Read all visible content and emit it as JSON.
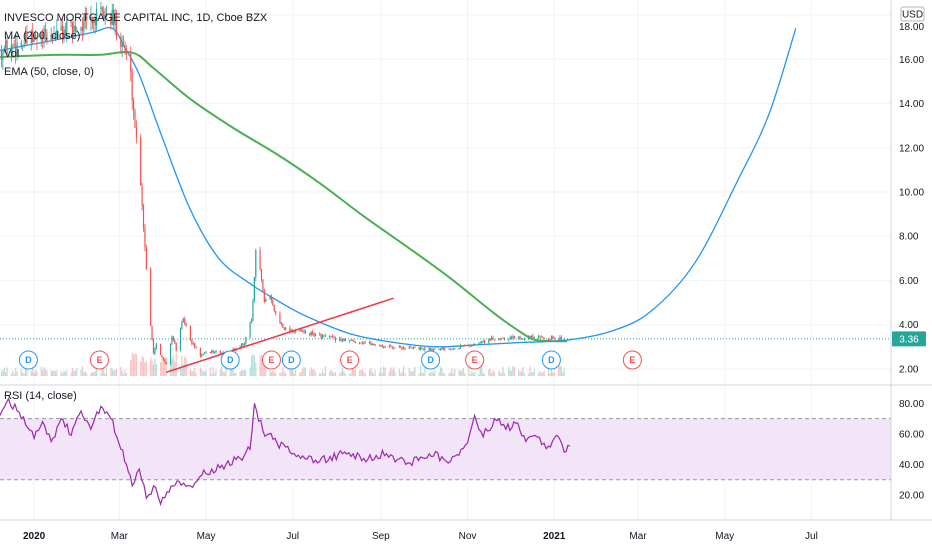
{
  "legend": {
    "title": "INVESCO MORTGAGE CAPITAL INC, 1D, Cboe BZX",
    "ma": "MA (200, close)",
    "vol": "Vol",
    "ema": "EMA (50, close, 0)",
    "rsi": "RSI (14, close)"
  },
  "currency": "USD",
  "last_price": "3.36",
  "colors": {
    "up": "#26a69a",
    "down": "#ef5350",
    "ma": "#4caf50",
    "ema": "#2196f3",
    "trend": "#f23645",
    "rsi": "#9c27b0",
    "rsi_band": "#f3e5f8",
    "dividend": "#2196f3",
    "earnings": "#ef5350",
    "price_tag": "#26a69a"
  },
  "chart_data": [
    {
      "type": "candlestick",
      "pane": "price",
      "ylim": [
        1.5,
        18.5
      ],
      "y_ticks": [
        "2.00",
        "4.00",
        "6.00",
        "8.00",
        "10.00",
        "12.00",
        "14.00",
        "16.00",
        "18.00"
      ],
      "y_tick_values": [
        2,
        4,
        6,
        8,
        10,
        12,
        14,
        16,
        18
      ],
      "x_ticks": [
        "2020",
        "Mar",
        "May",
        "Jul",
        "Sep",
        "Nov",
        "2021",
        "Mar",
        "May",
        "Jul"
      ],
      "x_tick_dates": [
        "2020-01-01",
        "2020-03-01",
        "2020-05-01",
        "2020-07-01",
        "2020-09-01",
        "2020-11-01",
        "2021-01-01",
        "2021-03-01",
        "2021-05-01",
        "2021-07-01"
      ],
      "x_range": [
        "2019-12-08",
        "2021-08-26"
      ],
      "last_price": 3.36,
      "close_path": [
        [
          "2019-12-08",
          16.4
        ],
        [
          "2019-12-20",
          16.7
        ],
        [
          "2020-01-05",
          16.9
        ],
        [
          "2020-01-20",
          17.2
        ],
        [
          "2020-02-05",
          17.6
        ],
        [
          "2020-02-20",
          18.0
        ],
        [
          "2020-02-25",
          17.8
        ],
        [
          "2020-03-02",
          17.0
        ],
        [
          "2020-03-05",
          16.4
        ],
        [
          "2020-03-09",
          15.2
        ],
        [
          "2020-03-12",
          13.0
        ],
        [
          "2020-03-16",
          10.5
        ],
        [
          "2020-03-19",
          7.5
        ],
        [
          "2020-03-23",
          4.0
        ],
        [
          "2020-03-25",
          2.7
        ],
        [
          "2020-03-27",
          3.2
        ],
        [
          "2020-03-31",
          2.5
        ],
        [
          "2020-04-03",
          2.2
        ],
        [
          "2020-04-07",
          3.5
        ],
        [
          "2020-04-10",
          2.9
        ],
        [
          "2020-04-15",
          4.3
        ],
        [
          "2020-04-20",
          3.3
        ],
        [
          "2020-04-27",
          2.6
        ],
        [
          "2020-05-05",
          2.8
        ],
        [
          "2020-05-15",
          2.7
        ],
        [
          "2020-05-22",
          2.9
        ],
        [
          "2020-05-28",
          3.2
        ],
        [
          "2020-06-02",
          4.2
        ],
        [
          "2020-06-05",
          7.2
        ],
        [
          "2020-06-08",
          6.5
        ],
        [
          "2020-06-11",
          5.0
        ],
        [
          "2020-06-15",
          5.2
        ],
        [
          "2020-06-20",
          4.3
        ],
        [
          "2020-06-26",
          3.8
        ],
        [
          "2020-07-05",
          3.7
        ],
        [
          "2020-07-20",
          3.5
        ],
        [
          "2020-08-05",
          3.3
        ],
        [
          "2020-08-20",
          3.2
        ],
        [
          "2020-09-05",
          3.0
        ],
        [
          "2020-09-20",
          2.95
        ],
        [
          "2020-10-05",
          2.9
        ],
        [
          "2020-10-20",
          2.95
        ],
        [
          "2020-11-05",
          3.1
        ],
        [
          "2020-11-15",
          3.3
        ],
        [
          "2020-11-25",
          3.4
        ],
        [
          "2020-12-10",
          3.45
        ],
        [
          "2020-12-25",
          3.4
        ],
        [
          "2021-01-10",
          3.36
        ]
      ],
      "ma_200": [
        [
          "2019-12-08",
          16.1
        ],
        [
          "2020-01-15",
          16.2
        ],
        [
          "2020-02-15",
          16.2
        ],
        [
          "2020-03-10",
          16.3
        ],
        [
          "2020-03-25",
          15.6
        ],
        [
          "2020-04-20",
          14.2
        ],
        [
          "2020-05-20",
          12.9
        ],
        [
          "2020-06-20",
          11.7
        ],
        [
          "2020-07-20",
          10.4
        ],
        [
          "2020-08-20",
          8.9
        ],
        [
          "2020-09-20",
          7.5
        ],
        [
          "2020-10-20",
          6.1
        ],
        [
          "2020-11-20",
          4.5
        ],
        [
          "2020-12-10",
          3.6
        ],
        [
          "2020-12-20",
          3.3
        ],
        [
          "2021-01-10",
          3.25
        ]
      ],
      "ema_50": [
        [
          "2019-12-08",
          16.4
        ],
        [
          "2020-01-10",
          16.8
        ],
        [
          "2020-02-10",
          17.2
        ],
        [
          "2020-02-25",
          17.4
        ],
        [
          "2020-03-05",
          16.5
        ],
        [
          "2020-03-15",
          15.3
        ],
        [
          "2020-03-31",
          12.5
        ],
        [
          "2020-04-20",
          9.2
        ],
        [
          "2020-05-10",
          7.0
        ],
        [
          "2020-05-31",
          5.9
        ],
        [
          "2020-06-20",
          5.1
        ],
        [
          "2020-07-10",
          4.4
        ],
        [
          "2020-08-10",
          3.6
        ],
        [
          "2020-09-10",
          3.2
        ],
        [
          "2020-10-10",
          3.0
        ],
        [
          "2020-11-10",
          3.1
        ],
        [
          "2020-12-10",
          3.2
        ],
        [
          "2021-01-10",
          3.3
        ],
        [
          "2021-02-10",
          3.7
        ],
        [
          "2021-03-10",
          4.6
        ],
        [
          "2021-04-10",
          6.8
        ],
        [
          "2021-05-10",
          10.5
        ],
        [
          "2021-06-01",
          13.5
        ],
        [
          "2021-06-20",
          17.4
        ]
      ],
      "trend_line": [
        [
          "2020-04-03",
          1.85
        ],
        [
          "2020-09-10",
          5.2
        ]
      ],
      "events": [
        {
          "type": "dividend",
          "label": "D",
          "date": "2019-12-28"
        },
        {
          "type": "earnings",
          "label": "E",
          "date": "2020-02-16"
        },
        {
          "type": "dividend",
          "label": "D",
          "date": "2020-05-18"
        },
        {
          "type": "earnings",
          "label": "E",
          "date": "2020-06-16"
        },
        {
          "type": "dividend",
          "label": "D",
          "date": "2020-06-30"
        },
        {
          "type": "earnings",
          "label": "E",
          "date": "2020-08-10"
        },
        {
          "type": "dividend",
          "label": "D",
          "date": "2020-10-06"
        },
        {
          "type": "earnings",
          "label": "E",
          "date": "2020-11-06"
        },
        {
          "type": "dividend",
          "label": "D",
          "date": "2020-12-30"
        },
        {
          "type": "earnings",
          "label": "E",
          "date": "2021-02-25"
        }
      ]
    },
    {
      "type": "line",
      "pane": "rsi",
      "name": "RSI (14, close)",
      "ylim": [
        5,
        90
      ],
      "y_ticks": [
        "20.00",
        "40.00",
        "60.00",
        "80.00"
      ],
      "y_tick_values": [
        20,
        40,
        60,
        80
      ],
      "bands": {
        "upper": 70,
        "lower": 30
      },
      "points": [
        [
          "2019-12-08",
          72
        ],
        [
          "2019-12-14",
          83
        ],
        [
          "2019-12-20",
          75
        ],
        [
          "2019-12-26",
          66
        ],
        [
          "2020-01-01",
          57
        ],
        [
          "2020-01-07",
          68
        ],
        [
          "2020-01-13",
          55
        ],
        [
          "2020-01-20",
          70
        ],
        [
          "2020-01-27",
          59
        ],
        [
          "2020-02-03",
          75
        ],
        [
          "2020-02-10",
          63
        ],
        [
          "2020-02-17",
          78
        ],
        [
          "2020-02-24",
          70
        ],
        [
          "2020-03-02",
          50
        ],
        [
          "2020-03-06",
          40
        ],
        [
          "2020-03-10",
          26
        ],
        [
          "2020-03-15",
          37
        ],
        [
          "2020-03-20",
          18
        ],
        [
          "2020-03-25",
          26
        ],
        [
          "2020-03-30",
          14
        ],
        [
          "2020-04-05",
          22
        ],
        [
          "2020-04-12",
          29
        ],
        [
          "2020-04-20",
          26
        ],
        [
          "2020-04-28",
          33
        ],
        [
          "2020-05-05",
          37
        ],
        [
          "2020-05-15",
          40
        ],
        [
          "2020-05-25",
          44
        ],
        [
          "2020-06-01",
          50
        ],
        [
          "2020-06-04",
          80
        ],
        [
          "2020-06-10",
          62
        ],
        [
          "2020-06-20",
          54
        ],
        [
          "2020-07-05",
          46
        ],
        [
          "2020-07-20",
          42
        ],
        [
          "2020-08-05",
          47
        ],
        [
          "2020-08-20",
          44
        ],
        [
          "2020-09-05",
          47
        ],
        [
          "2020-09-20",
          41
        ],
        [
          "2020-10-05",
          47
        ],
        [
          "2020-10-20",
          42
        ],
        [
          "2020-11-01",
          54
        ],
        [
          "2020-11-06",
          72
        ],
        [
          "2020-11-12",
          58
        ],
        [
          "2020-11-20",
          70
        ],
        [
          "2020-11-28",
          63
        ],
        [
          "2020-12-05",
          67
        ],
        [
          "2020-12-12",
          55
        ],
        [
          "2020-12-20",
          58
        ],
        [
          "2020-12-28",
          52
        ],
        [
          "2021-01-04",
          58
        ],
        [
          "2021-01-08",
          48
        ],
        [
          "2021-01-12",
          52
        ]
      ]
    }
  ]
}
